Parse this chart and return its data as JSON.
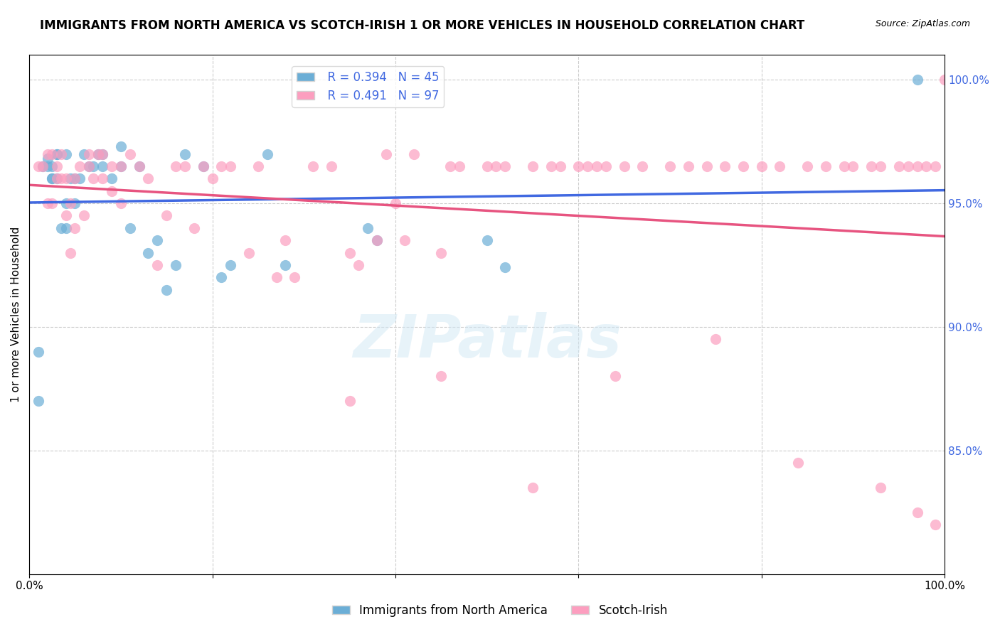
{
  "title": "IMMIGRANTS FROM NORTH AMERICA VS SCOTCH-IRISH 1 OR MORE VEHICLES IN HOUSEHOLD CORRELATION CHART",
  "source": "Source: ZipAtlas.com",
  "xlabel": "",
  "ylabel": "1 or more Vehicles in Household",
  "xmin": 0.0,
  "xmax": 1.0,
  "ymin": 0.8,
  "ymax": 1.01,
  "yticks": [
    0.85,
    0.9,
    0.95,
    1.0
  ],
  "ytick_labels": [
    "85.0%",
    "90.0%",
    "95.0%",
    "100.0%"
  ],
  "xticks": [
    0.0,
    0.2,
    0.4,
    0.6,
    0.8,
    1.0
  ],
  "xtick_labels": [
    "0.0%",
    "",
    "",
    "",
    "",
    "100.0%"
  ],
  "blue_color": "#6baed6",
  "pink_color": "#fc9ebf",
  "blue_line_color": "#4169E1",
  "pink_line_color": "#E75480",
  "R_blue": 0.394,
  "N_blue": 45,
  "R_pink": 0.491,
  "N_pink": 97,
  "blue_scatter_x": [
    0.01,
    0.01,
    0.015,
    0.02,
    0.02,
    0.025,
    0.025,
    0.025,
    0.03,
    0.03,
    0.03,
    0.035,
    0.04,
    0.04,
    0.04,
    0.045,
    0.05,
    0.05,
    0.055,
    0.06,
    0.065,
    0.07,
    0.075,
    0.08,
    0.08,
    0.09,
    0.1,
    0.1,
    0.11,
    0.12,
    0.13,
    0.14,
    0.15,
    0.16,
    0.17,
    0.19,
    0.21,
    0.22,
    0.26,
    0.28,
    0.37,
    0.38,
    0.5,
    0.52,
    0.97
  ],
  "blue_scatter_y": [
    0.87,
    0.89,
    0.965,
    0.965,
    0.968,
    0.96,
    0.96,
    0.965,
    0.96,
    0.97,
    0.97,
    0.94,
    0.94,
    0.95,
    0.97,
    0.96,
    0.95,
    0.96,
    0.96,
    0.97,
    0.965,
    0.965,
    0.97,
    0.965,
    0.97,
    0.96,
    0.965,
    0.973,
    0.94,
    0.965,
    0.93,
    0.935,
    0.915,
    0.925,
    0.97,
    0.965,
    0.92,
    0.925,
    0.97,
    0.925,
    0.94,
    0.935,
    0.935,
    0.924,
    1.0
  ],
  "pink_scatter_x": [
    0.01,
    0.015,
    0.02,
    0.02,
    0.025,
    0.025,
    0.03,
    0.03,
    0.035,
    0.035,
    0.04,
    0.04,
    0.045,
    0.045,
    0.05,
    0.05,
    0.055,
    0.06,
    0.065,
    0.065,
    0.07,
    0.075,
    0.08,
    0.08,
    0.09,
    0.09,
    0.1,
    0.1,
    0.11,
    0.12,
    0.13,
    0.14,
    0.15,
    0.16,
    0.17,
    0.18,
    0.19,
    0.2,
    0.21,
    0.22,
    0.24,
    0.25,
    0.27,
    0.28,
    0.29,
    0.31,
    0.33,
    0.35,
    0.38,
    0.39,
    0.4,
    0.42,
    0.45,
    0.46,
    0.47,
    0.5,
    0.51,
    0.52,
    0.55,
    0.57,
    0.58,
    0.6,
    0.61,
    0.62,
    0.63,
    0.65,
    0.67,
    0.7,
    0.72,
    0.74,
    0.76,
    0.78,
    0.8,
    0.82,
    0.85,
    0.87,
    0.89,
    0.9,
    0.92,
    0.93,
    0.95,
    0.96,
    0.97,
    0.98,
    0.99,
    1.0,
    0.35,
    0.45,
    0.36,
    0.41,
    0.55,
    0.64,
    0.75,
    0.84,
    0.93,
    0.97,
    0.99
  ],
  "pink_scatter_y": [
    0.965,
    0.965,
    0.95,
    0.97,
    0.95,
    0.97,
    0.96,
    0.965,
    0.96,
    0.97,
    0.945,
    0.96,
    0.93,
    0.95,
    0.94,
    0.96,
    0.965,
    0.945,
    0.965,
    0.97,
    0.96,
    0.97,
    0.96,
    0.97,
    0.955,
    0.965,
    0.95,
    0.965,
    0.97,
    0.965,
    0.96,
    0.925,
    0.945,
    0.965,
    0.965,
    0.94,
    0.965,
    0.96,
    0.965,
    0.965,
    0.93,
    0.965,
    0.92,
    0.935,
    0.92,
    0.965,
    0.965,
    0.93,
    0.935,
    0.97,
    0.95,
    0.97,
    0.93,
    0.965,
    0.965,
    0.965,
    0.965,
    0.965,
    0.965,
    0.965,
    0.965,
    0.965,
    0.965,
    0.965,
    0.965,
    0.965,
    0.965,
    0.965,
    0.965,
    0.965,
    0.965,
    0.965,
    0.965,
    0.965,
    0.965,
    0.965,
    0.965,
    0.965,
    0.965,
    0.965,
    0.965,
    0.965,
    0.965,
    0.965,
    0.965,
    1.0,
    0.87,
    0.88,
    0.925,
    0.935,
    0.835,
    0.88,
    0.895,
    0.845,
    0.835,
    0.825,
    0.82
  ],
  "watermark": "ZIPatlas",
  "legend_blue_label": "Immigrants from North America",
  "legend_pink_label": "Scotch-Irish"
}
